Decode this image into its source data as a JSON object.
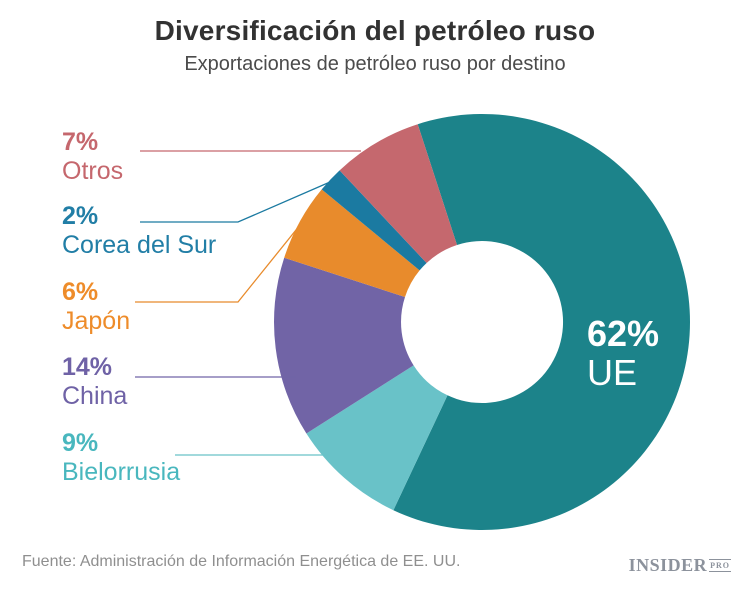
{
  "header": {
    "title": "Diversificación del petróleo ruso",
    "subtitle": "Exportaciones de petróleo ruso por destino"
  },
  "chart_data": {
    "type": "pie",
    "variant": "donut",
    "title": "Diversificación del petróleo ruso",
    "subtitle": "Exportaciones de petróleo ruso por destino",
    "unit": "%",
    "direction": "clockwise",
    "start_angle_deg": -18,
    "legend_position": "left-labels-with-leader-lines",
    "segments": [
      {
        "name": "UE",
        "value": 62,
        "pct_label": "62%",
        "color": "#1c838a",
        "label_color": "#ffffff",
        "label_placement": "inside"
      },
      {
        "name": "Bielorrusia",
        "value": 9,
        "pct_label": "9%",
        "color": "#69c2c8",
        "label_color": "#49b7be",
        "label_placement": "left"
      },
      {
        "name": "China",
        "value": 14,
        "pct_label": "14%",
        "color": "#7164a6",
        "label_color": "#6f62a6",
        "label_placement": "left"
      },
      {
        "name": "Japón",
        "value": 6,
        "pct_label": "6%",
        "color": "#e88b2c",
        "label_color": "#ee8c2a",
        "label_placement": "left"
      },
      {
        "name": "Corea del Sur",
        "value": 2,
        "pct_label": "2%",
        "color": "#1b7aa1",
        "label_color": "#217ea6",
        "label_placement": "left"
      },
      {
        "name": "Otros",
        "value": 7,
        "pct_label": "7%",
        "color": "#c5686e",
        "label_color": "#c5676d",
        "label_placement": "left"
      }
    ]
  },
  "footer": {
    "source": "Fuente: Administración de Información Energética de EE. UU.",
    "logo": {
      "name": "INSIDER",
      "suffix": "PRO"
    }
  }
}
